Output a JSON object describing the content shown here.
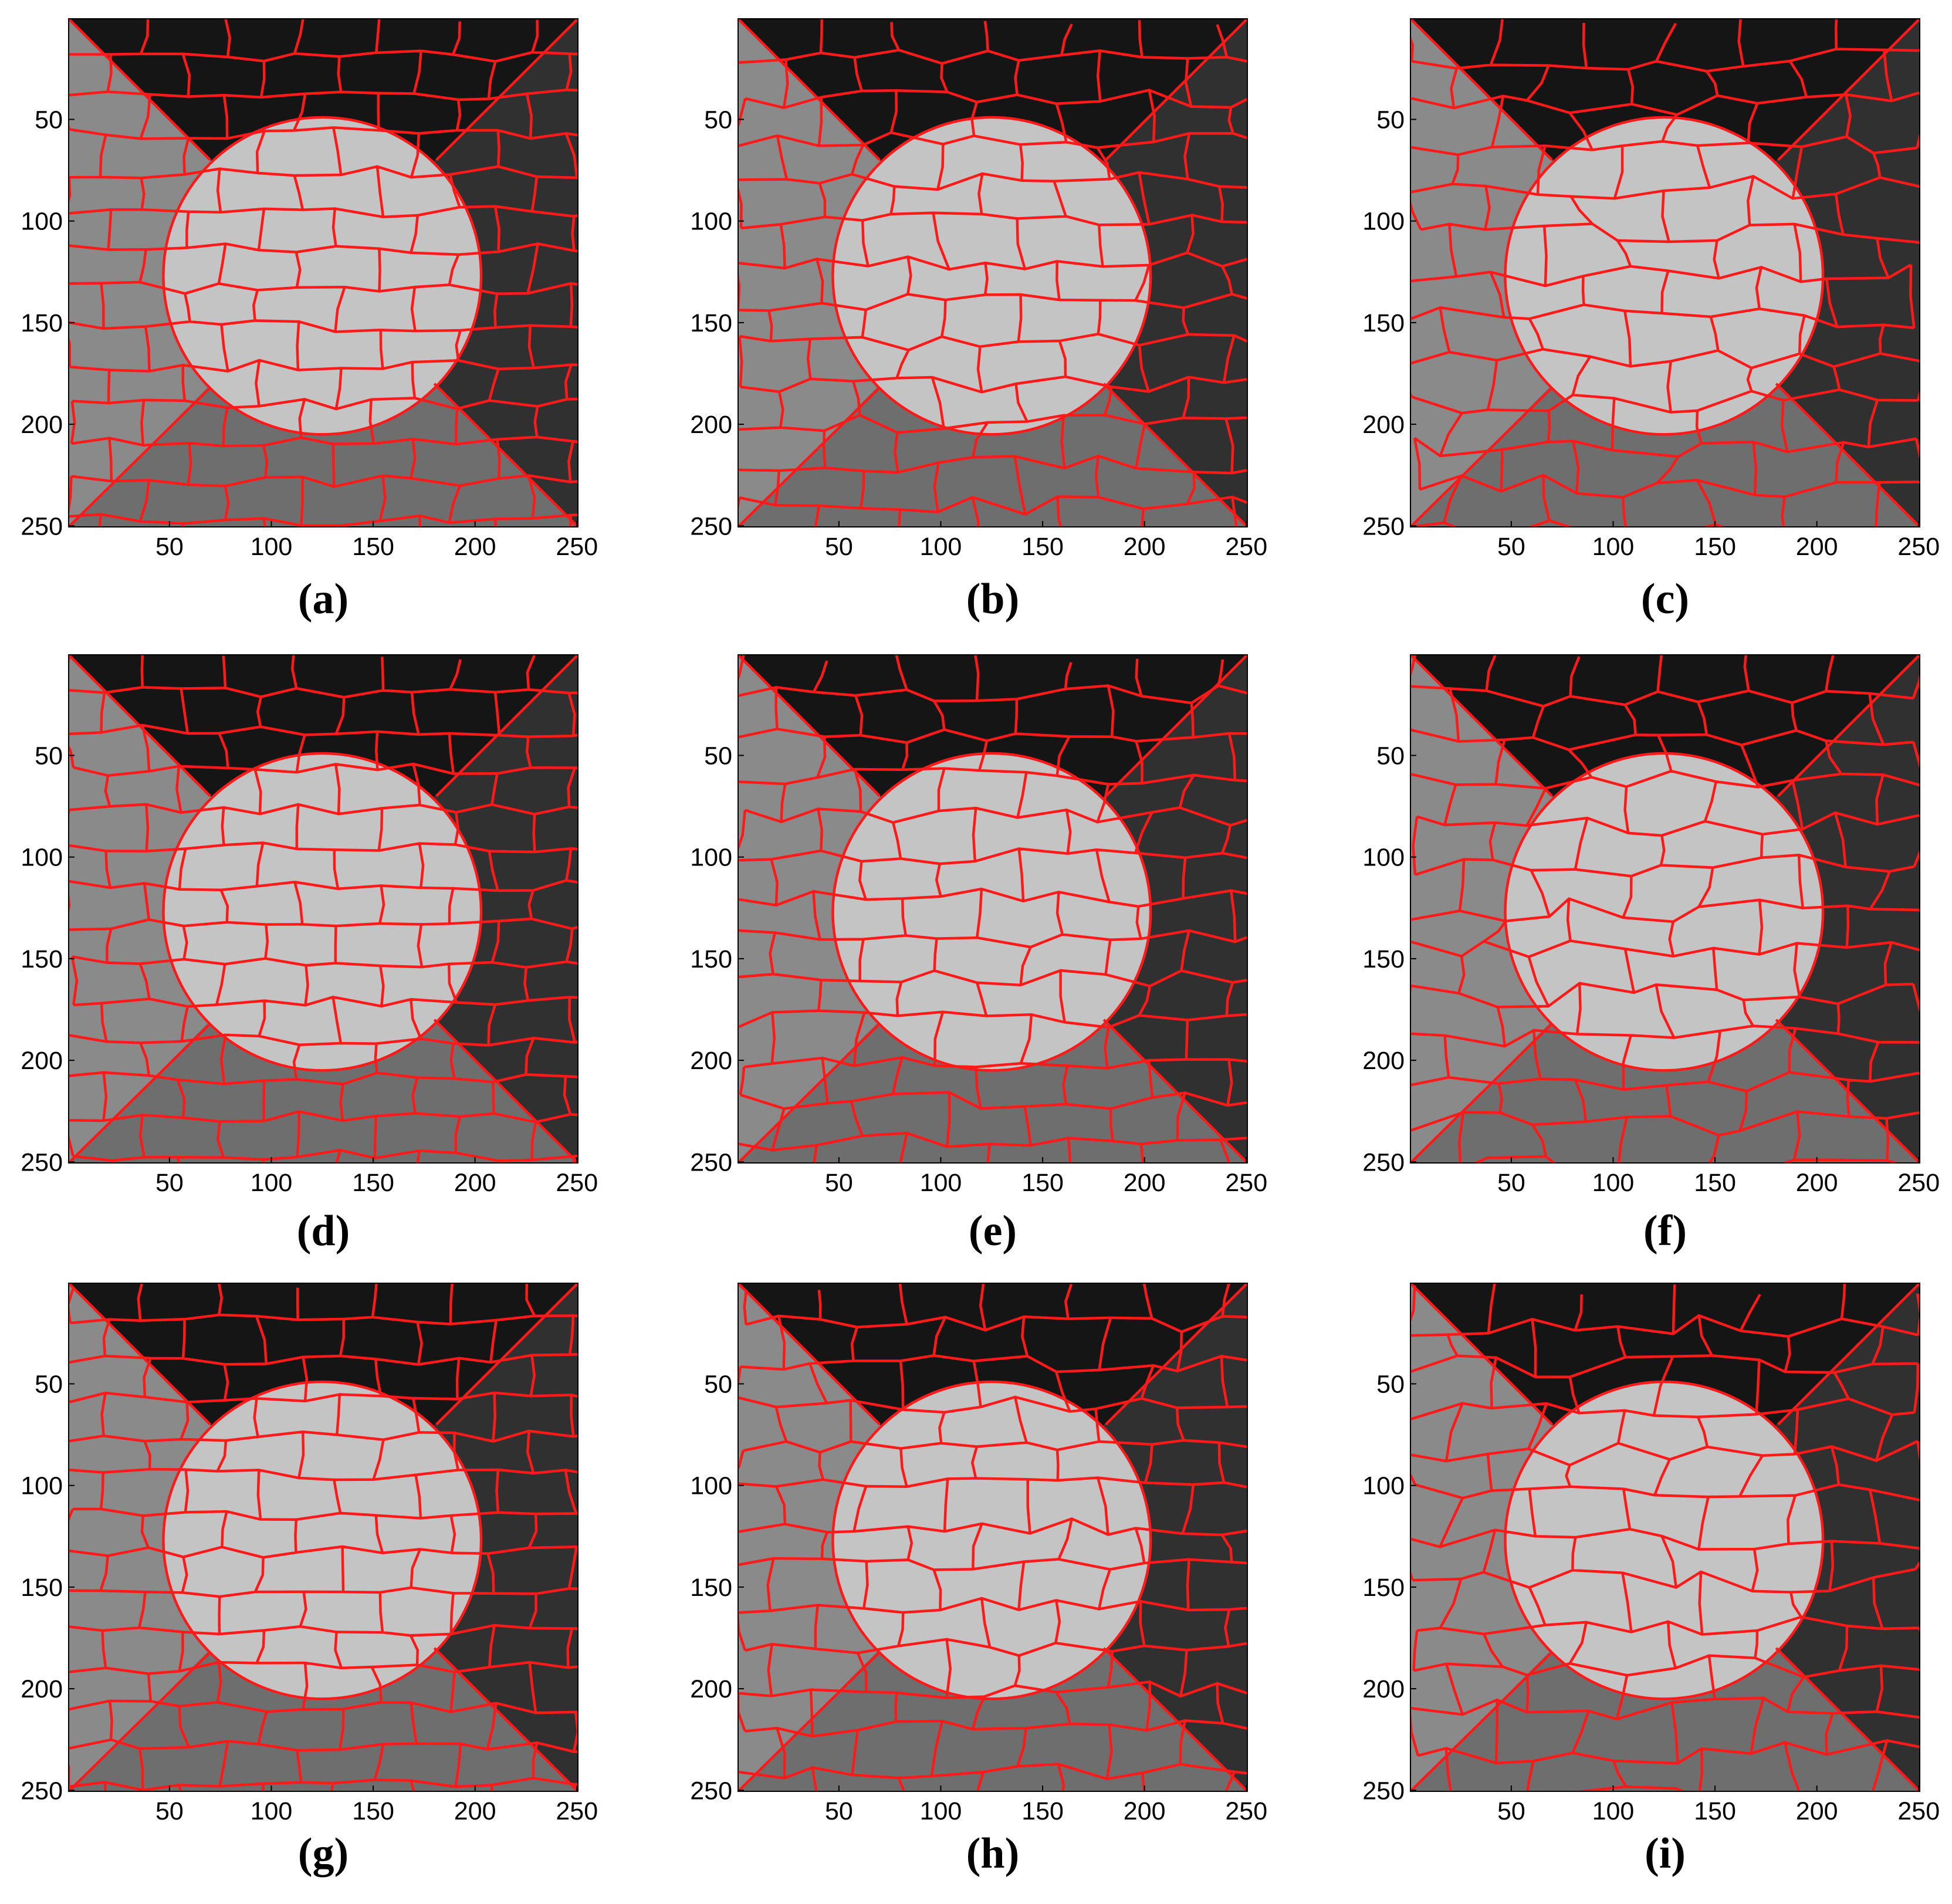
{
  "panels": [
    {
      "label": "(a)"
    },
    {
      "label": "(b)"
    },
    {
      "label": "(c)"
    },
    {
      "label": "(d)"
    },
    {
      "label": "(e)"
    },
    {
      "label": "(f)"
    },
    {
      "label": "(g)"
    },
    {
      "label": "(h)"
    },
    {
      "label": "(i)"
    }
  ],
  "xlim": [
    0.5,
    250.5
  ],
  "ylim": [
    250.5,
    0.5
  ],
  "xticks": [
    50,
    100,
    150,
    200,
    250
  ],
  "yticks": [
    50,
    100,
    150,
    200,
    250
  ]
}
